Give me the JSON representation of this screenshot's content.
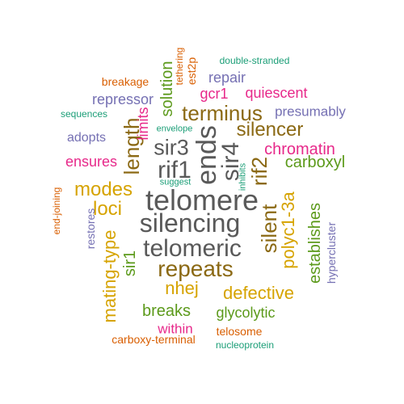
{
  "palette": {
    "gray": "#595959",
    "brown": "#8B6914",
    "gold": "#D6A300",
    "green": "#5C9A1B",
    "orange": "#D95F02",
    "teal": "#1B9E77",
    "purple": "#7570B3",
    "magenta": "#E7298A"
  },
  "words": [
    {
      "text": "telomere",
      "color": "gray"
    },
    {
      "text": "silencing",
      "color": "gray"
    },
    {
      "text": "telomeric",
      "color": "gray"
    },
    {
      "text": "ends",
      "color": "gray"
    },
    {
      "text": "sir3",
      "color": "gray"
    },
    {
      "text": "rif1",
      "color": "gray"
    },
    {
      "text": "sir4",
      "color": "gray"
    },
    {
      "text": "repeats",
      "color": "brown"
    },
    {
      "text": "terminus",
      "color": "brown"
    },
    {
      "text": "silencer",
      "color": "brown"
    },
    {
      "text": "length",
      "color": "brown"
    },
    {
      "text": "rif2",
      "color": "brown"
    },
    {
      "text": "silent",
      "color": "brown"
    },
    {
      "text": "modes",
      "color": "gold"
    },
    {
      "text": "loci",
      "color": "gold"
    },
    {
      "text": "polyc1-3a",
      "color": "gold"
    },
    {
      "text": "nhej",
      "color": "gold"
    },
    {
      "text": "defective",
      "color": "gold"
    },
    {
      "text": "mating-type",
      "color": "gold"
    },
    {
      "text": "establishes",
      "color": "green"
    },
    {
      "text": "carboxyl",
      "color": "green"
    },
    {
      "text": "breaks",
      "color": "green"
    },
    {
      "text": "glycolytic",
      "color": "green"
    },
    {
      "text": "sir1",
      "color": "green"
    },
    {
      "text": "solution",
      "color": "green"
    },
    {
      "text": "chromatin",
      "color": "magenta"
    },
    {
      "text": "gcr1",
      "color": "magenta"
    },
    {
      "text": "quiescent",
      "color": "magenta"
    },
    {
      "text": "ensures",
      "color": "magenta"
    },
    {
      "text": "limits",
      "color": "magenta"
    },
    {
      "text": "within",
      "color": "magenta"
    },
    {
      "text": "repressor",
      "color": "purple"
    },
    {
      "text": "repair",
      "color": "purple"
    },
    {
      "text": "presumably",
      "color": "purple"
    },
    {
      "text": "adopts",
      "color": "purple"
    },
    {
      "text": "restores",
      "color": "purple"
    },
    {
      "text": "hypercluster",
      "color": "purple"
    },
    {
      "text": "breakage",
      "color": "orange"
    },
    {
      "text": "tethering",
      "color": "orange"
    },
    {
      "text": "est2p",
      "color": "orange"
    },
    {
      "text": "end-joining",
      "color": "orange"
    },
    {
      "text": "telosome",
      "color": "orange"
    },
    {
      "text": "carboxy-terminal",
      "color": "orange"
    },
    {
      "text": "double-stranded",
      "color": "teal"
    },
    {
      "text": "sequences",
      "color": "teal"
    },
    {
      "text": "envelope",
      "color": "teal"
    },
    {
      "text": "suggest",
      "color": "teal"
    },
    {
      "text": "inhibits",
      "color": "teal"
    },
    {
      "text": "nucleoprotein",
      "color": "teal"
    }
  ]
}
